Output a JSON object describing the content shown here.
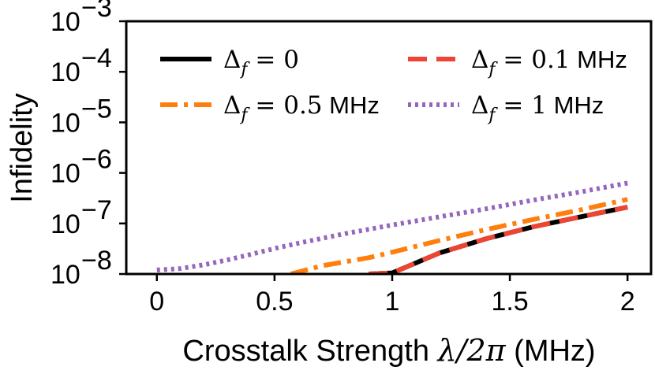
{
  "chart_data": {
    "type": "line",
    "xlabel": "Crosstalk Strength λ/2π (MHz)",
    "xlabel_parts": {
      "prefix": "Crosstalk Strength ",
      "math": "λ/2π",
      "suffix": " (MHz)"
    },
    "ylabel": "Infidelity",
    "xlim": [
      -0.13,
      2.1
    ],
    "ylim": [
      1e-08,
      0.001
    ],
    "yscale": "log",
    "x_ticks": [
      0,
      0.5,
      1,
      1.5,
      2
    ],
    "x_tick_labels": [
      "0",
      "0.5",
      "1",
      "1.5",
      "2"
    ],
    "y_ticks": [
      1e-08,
      1e-07,
      1e-06,
      1e-05,
      0.0001,
      0.001
    ],
    "y_tick_labels": [
      {
        "base": "10",
        "exp": "−8"
      },
      {
        "base": "10",
        "exp": "−7"
      },
      {
        "base": "10",
        "exp": "−6"
      },
      {
        "base": "10",
        "exp": "−5"
      },
      {
        "base": "10",
        "exp": "−4"
      },
      {
        "base": "10",
        "exp": "−3"
      }
    ],
    "legend_position": "top",
    "series": [
      {
        "name": "Δf = 0",
        "legend_value": "0",
        "legend_unit": "",
        "color": "#000000",
        "style": "solid",
        "x": [
          0.9,
          1.0,
          1.2,
          1.4,
          1.6,
          1.8,
          2.0
        ],
        "y": [
          1e-08,
          1.05e-08,
          2.6e-08,
          5e-08,
          8.6e-08,
          1.35e-07,
          2.1e-07
        ]
      },
      {
        "name": "Δf = 0.1 MHz",
        "legend_value": "0.1",
        "legend_unit": "MHz",
        "color": "#ee4433",
        "style": "dashed",
        "x": [
          0.9,
          1.0,
          1.2,
          1.4,
          1.6,
          1.8,
          2.0
        ],
        "y": [
          1e-08,
          1.05e-08,
          2.6e-08,
          5e-08,
          8.6e-08,
          1.35e-07,
          2.1e-07
        ]
      },
      {
        "name": "Δf = 0.5 MHz",
        "legend_value": "0.5",
        "legend_unit": "MHz",
        "color": "#ff7f0e",
        "style": "dashdot",
        "x": [
          0.57,
          0.7,
          0.9,
          1.0,
          1.2,
          1.4,
          1.6,
          1.8,
          2.0
        ],
        "y": [
          1e-08,
          1.45e-08,
          2.1e-08,
          2.7e-08,
          4.6e-08,
          7.6e-08,
          1.2e-07,
          1.85e-07,
          3e-07
        ]
      },
      {
        "name": "Δf = 1 MHz",
        "legend_value": "1",
        "legend_unit": "MHz",
        "color": "#9467bd",
        "style": "dotted",
        "x": [
          0.0,
          0.1,
          0.2,
          0.3,
          0.4,
          0.5,
          0.6,
          0.8,
          1.0,
          1.2,
          1.4,
          1.6,
          1.8,
          2.0
        ],
        "y": [
          1.2e-08,
          1.28e-08,
          1.52e-08,
          1.9e-08,
          2.45e-08,
          3.2e-08,
          4.05e-08,
          6.3e-08,
          9.3e-08,
          1.35e-07,
          1.95e-07,
          2.9e-07,
          4.2e-07,
          6.3e-07
        ]
      }
    ]
  }
}
